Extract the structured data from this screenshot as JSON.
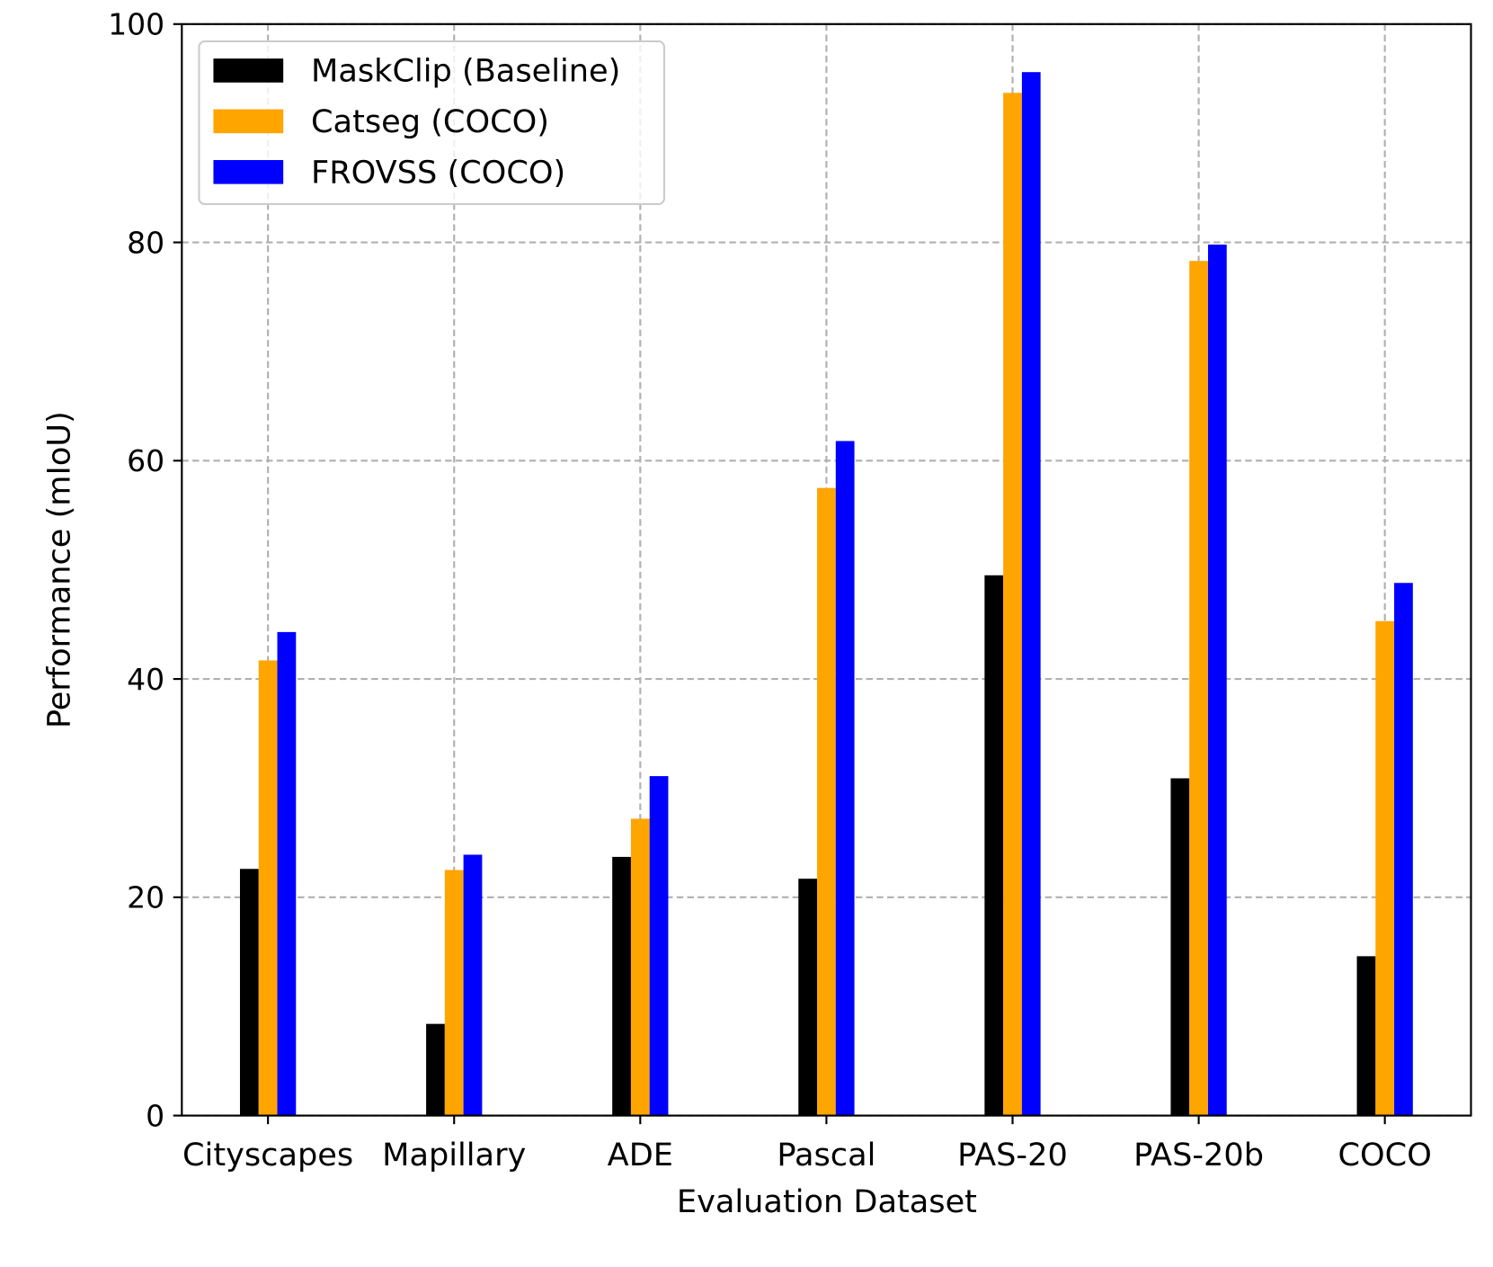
{
  "chart_data": {
    "type": "bar",
    "title": "",
    "xlabel": "Evaluation Dataset",
    "ylabel": "Performance (mIoU)",
    "ylim": [
      0,
      100
    ],
    "yticks": [
      "0",
      "20",
      "40",
      "60",
      "80",
      "100"
    ],
    "grid": true,
    "legend_position": "top-left",
    "categories": [
      "Cityscapes",
      "Mapillary",
      "ADE",
      "Pascal",
      "PAS-20",
      "PAS-20b",
      "COCO"
    ],
    "series": [
      {
        "name": "MaskClip (Baseline)",
        "color": "#000000",
        "values": [
          22.6,
          8.4,
          23.7,
          21.7,
          49.5,
          30.9,
          14.6
        ]
      },
      {
        "name": "Catseg (COCO)",
        "color": "#FFA500",
        "values": [
          41.7,
          22.5,
          27.2,
          57.5,
          93.7,
          78.3,
          45.3
        ]
      },
      {
        "name": "FROVSS (COCO)",
        "color": "#0000FF",
        "values": [
          44.3,
          23.9,
          31.1,
          61.8,
          95.6,
          79.8,
          48.8
        ]
      }
    ]
  }
}
